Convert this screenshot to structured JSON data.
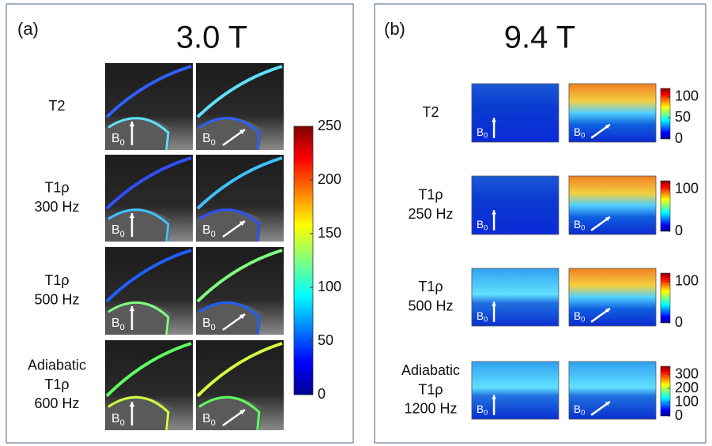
{
  "b0": {
    "base": "B",
    "sub": "0"
  },
  "panels": [
    {
      "label": "(a)",
      "title": "3.0 T",
      "rows": [
        {
          "lines": [
            "T2"
          ]
        },
        {
          "lines": [
            "T1ρ",
            "300 Hz"
          ]
        },
        {
          "lines": [
            "T1ρ",
            "500 Hz"
          ]
        },
        {
          "lines": [
            "Adiabatic",
            "T1ρ",
            "600 Hz"
          ]
        }
      ],
      "colorbar_ticks": [
        0,
        50,
        100,
        150,
        200,
        250
      ]
    },
    {
      "label": "(b)",
      "title": "9.4 T",
      "rows": [
        {
          "lines": [
            "T2"
          ],
          "colorbar_ticks": [
            0,
            50,
            100
          ]
        },
        {
          "lines": [
            "T1ρ",
            "250 Hz"
          ],
          "colorbar_ticks": [
            0,
            100
          ]
        },
        {
          "lines": [
            "T1ρ",
            "500 Hz"
          ],
          "colorbar_ticks": [
            0,
            100
          ]
        },
        {
          "lines": [
            "Adiabatic",
            "T1ρ",
            "1200 Hz"
          ],
          "colorbar_ticks": [
            0,
            100,
            200,
            300
          ]
        }
      ]
    }
  ]
}
